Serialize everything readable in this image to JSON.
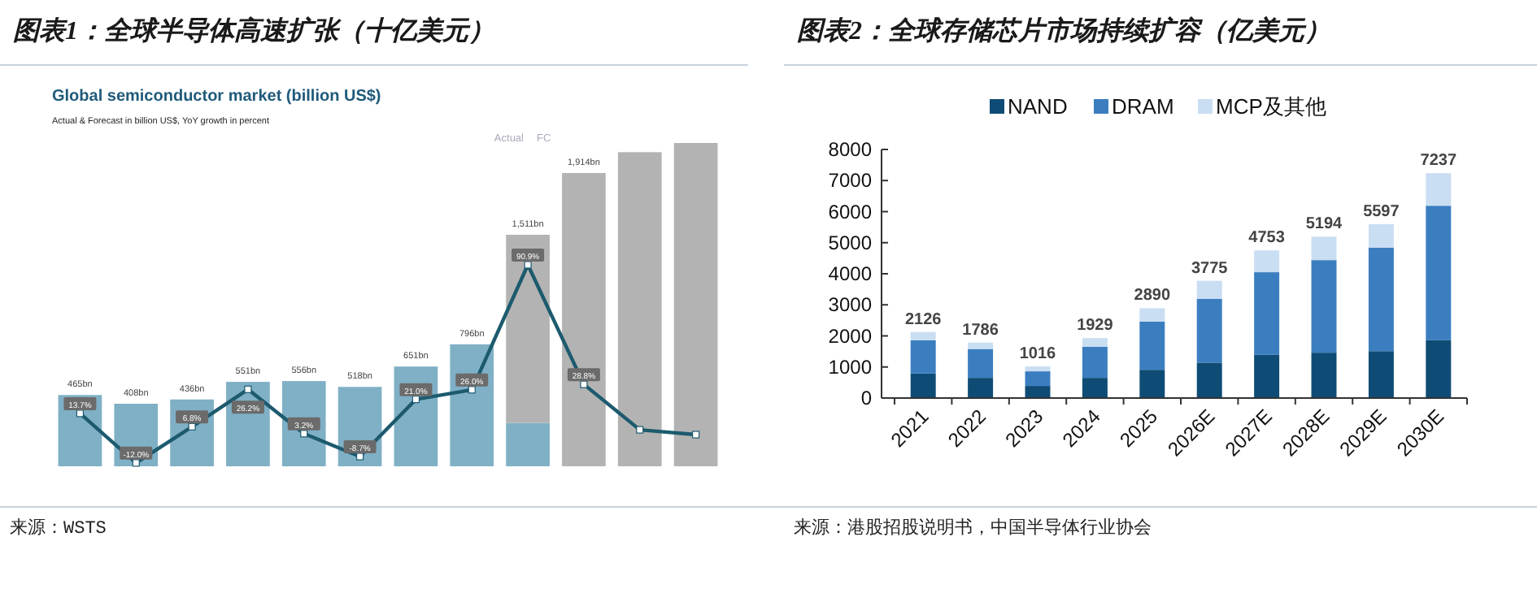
{
  "chart_data": [
    {
      "type": "bar",
      "title": "图表1：全球半导体高速扩张（十亿美元）",
      "subtitle": "Global semiconductor market (billion US$)",
      "annotations": [
        "Actual & Forecast in billion US$, YoY growth in percent",
        "Actual",
        "FC",
        "来源：WSTS"
      ],
      "categories": [
        null,
        null,
        null,
        null,
        null,
        null,
        null,
        null,
        null,
        null,
        null,
        null
      ],
      "stacked": true,
      "series": [
        {
          "color": "#7fb0c6",
          "values": [
            465,
            408,
            436,
            551,
            556,
            518,
            651,
            796,
            283,
            null,
            null,
            null
          ],
          "value_labels": [
            "465bn",
            "408bn",
            "436bn",
            "551bn",
            "556bn",
            "518bn",
            "651bn",
            "796bn",
            null,
            null,
            null,
            null
          ]
        },
        {
          "color": "#b3b3b3",
          "values": [
            null,
            null,
            null,
            null,
            null,
            null,
            null,
            null,
            1228,
            1914,
            2050,
            2110
          ]
        }
      ],
      "totals": [
        null,
        null,
        null,
        null,
        null,
        null,
        null,
        null,
        "1,511bn",
        "1,914bn",
        null,
        null
      ]
    },
    {
      "type": "line",
      "marker": "square",
      "categories": [
        null,
        null,
        null,
        null,
        null,
        null,
        null,
        null,
        null,
        null,
        null,
        null
      ],
      "series": [
        {
          "color": "#1d5a6e",
          "values": [
            13.7,
            -12.0,
            6.8,
            26.2,
            3.2,
            -8.7,
            21.0,
            26.0,
            90.9,
            28.8,
            5.2,
            2.7
          ],
          "value_labels": [
            "13.7%",
            "-12.0%",
            "6.8%",
            "26.2%",
            "3.2%",
            "-8.7%",
            "21.0%",
            "26.0%",
            "90.9%",
            "28.8%",
            null,
            null
          ]
        }
      ]
    },
    {
      "type": "bar",
      "title": "图表2：全球存储芯片市场持续扩容（亿美元）",
      "annotations": [
        "来源：港股招股说明书，中国半导体行业协会"
      ],
      "categories": [
        "2021",
        "2022",
        "2023",
        "2024",
        "2025",
        "2026E",
        "2027E",
        "2028E",
        "2029E",
        "2030E"
      ],
      "stacked": true,
      "legend": "top",
      "series": [
        {
          "name": "NAND",
          "color": "#0f4c75",
          "values": [
            790,
            650,
            390,
            650,
            910,
            1140,
            1390,
            1460,
            1510,
            1860
          ]
        },
        {
          "name": "DRAM",
          "color": "#3b7ec0",
          "values": [
            1070,
            930,
            470,
            1000,
            1550,
            2050,
            2660,
            2980,
            3330,
            4330
          ]
        },
        {
          "name": "MCP及其他",
          "color": "#c9def2",
          "values": [
            266,
            206,
            156,
            279,
            430,
            585,
            703,
            754,
            757,
            1047
          ]
        }
      ],
      "totals": [
        "2126",
        "1786",
        "1016",
        "1929",
        "2890",
        "3775",
        "4753",
        "5194",
        "5597",
        "7237"
      ],
      "ylim": [
        0,
        8000
      ],
      "yticks": [
        0,
        1000,
        2000,
        3000,
        4000,
        5000,
        6000,
        7000,
        8000
      ]
    }
  ]
}
